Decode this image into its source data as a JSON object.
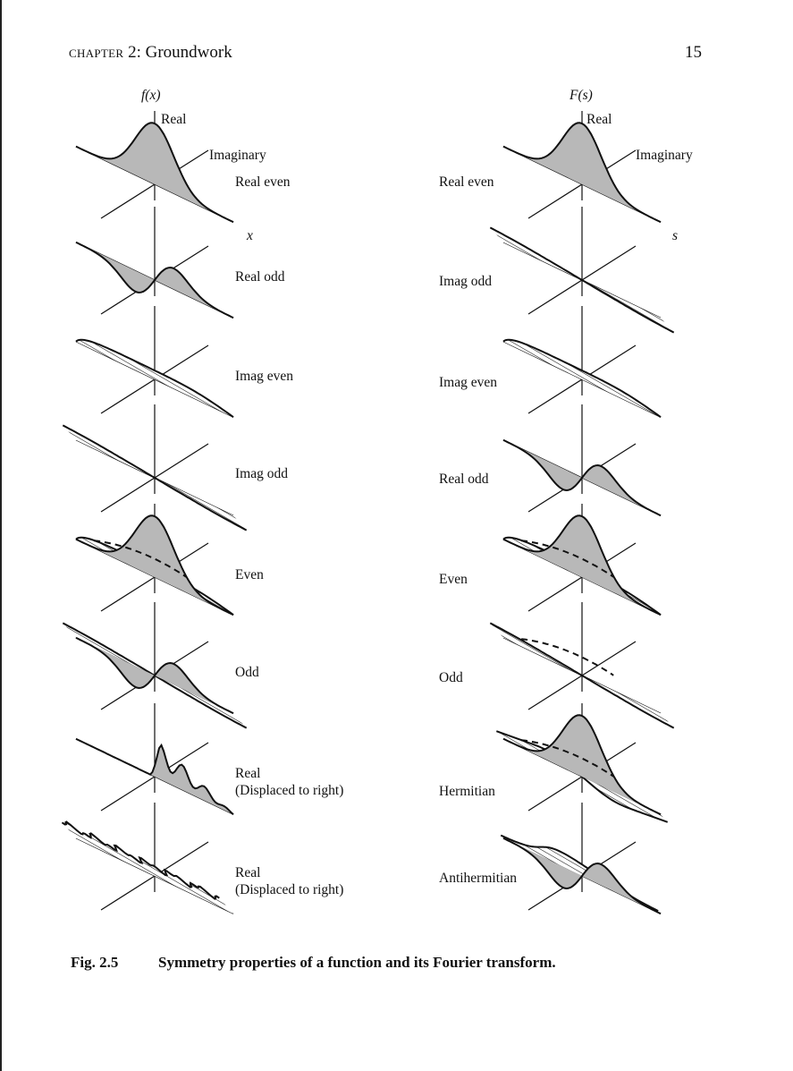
{
  "header": {
    "chapter_word": "chapter",
    "chapter_rest": "2: Groundwork",
    "page_number": "15"
  },
  "left_column": {
    "function_label": "f(x)",
    "real_axis_label": "Real",
    "imag_axis_label": "Imaginary",
    "x_axis_label": "x",
    "panels": [
      {
        "label": "Real even"
      },
      {
        "label": "Real odd"
      },
      {
        "label": "Imag even"
      },
      {
        "label": "Imag odd"
      },
      {
        "label": "Even"
      },
      {
        "label": "Odd"
      },
      {
        "label": "Real",
        "sub": "(Displaced to right)"
      },
      {
        "label": "Real",
        "sub": "(Displaced to right)"
      }
    ]
  },
  "right_column": {
    "function_label": "F(s)",
    "real_axis_label": "Real",
    "imag_axis_label": "Imaginary",
    "x_axis_label": "s",
    "panels": [
      {
        "label": "Real even"
      },
      {
        "label": "Imag odd"
      },
      {
        "label": "Imag even"
      },
      {
        "label": "Real odd"
      },
      {
        "label": "Even"
      },
      {
        "label": "Odd"
      },
      {
        "label": "Hermitian"
      },
      {
        "label": "Antihermitian"
      }
    ]
  },
  "caption": {
    "number": "Fig. 2.5",
    "text": "Symmetry properties of a function and its Fourier transform."
  }
}
